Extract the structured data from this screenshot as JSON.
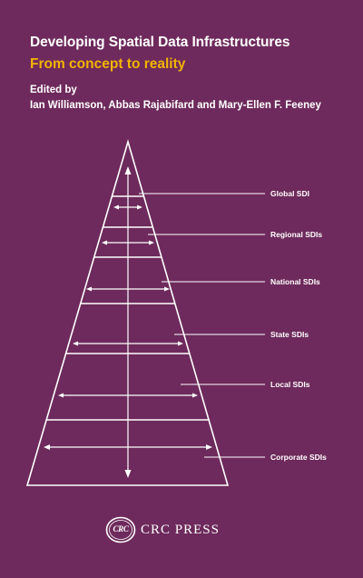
{
  "cover": {
    "title": "Developing Spatial Data Infrastructures",
    "subtitle": "From concept to reality",
    "edited_by": "Edited by",
    "editors": "Ian Williamson, Abbas Rajabifard and Mary-Ellen F. Feeney",
    "background_color": "#6e2a5c",
    "subtitle_color": "#f2b400"
  },
  "diagram": {
    "levels": [
      {
        "label": "Global SDI"
      },
      {
        "label": "Regional SDIs"
      },
      {
        "label": "National SDIs"
      },
      {
        "label": "State SDIs"
      },
      {
        "label": "Local SDIs"
      },
      {
        "label": "Corporate SDIs"
      }
    ]
  },
  "publisher": {
    "logo_text": "CRC",
    "name": "CRC PRESS"
  }
}
